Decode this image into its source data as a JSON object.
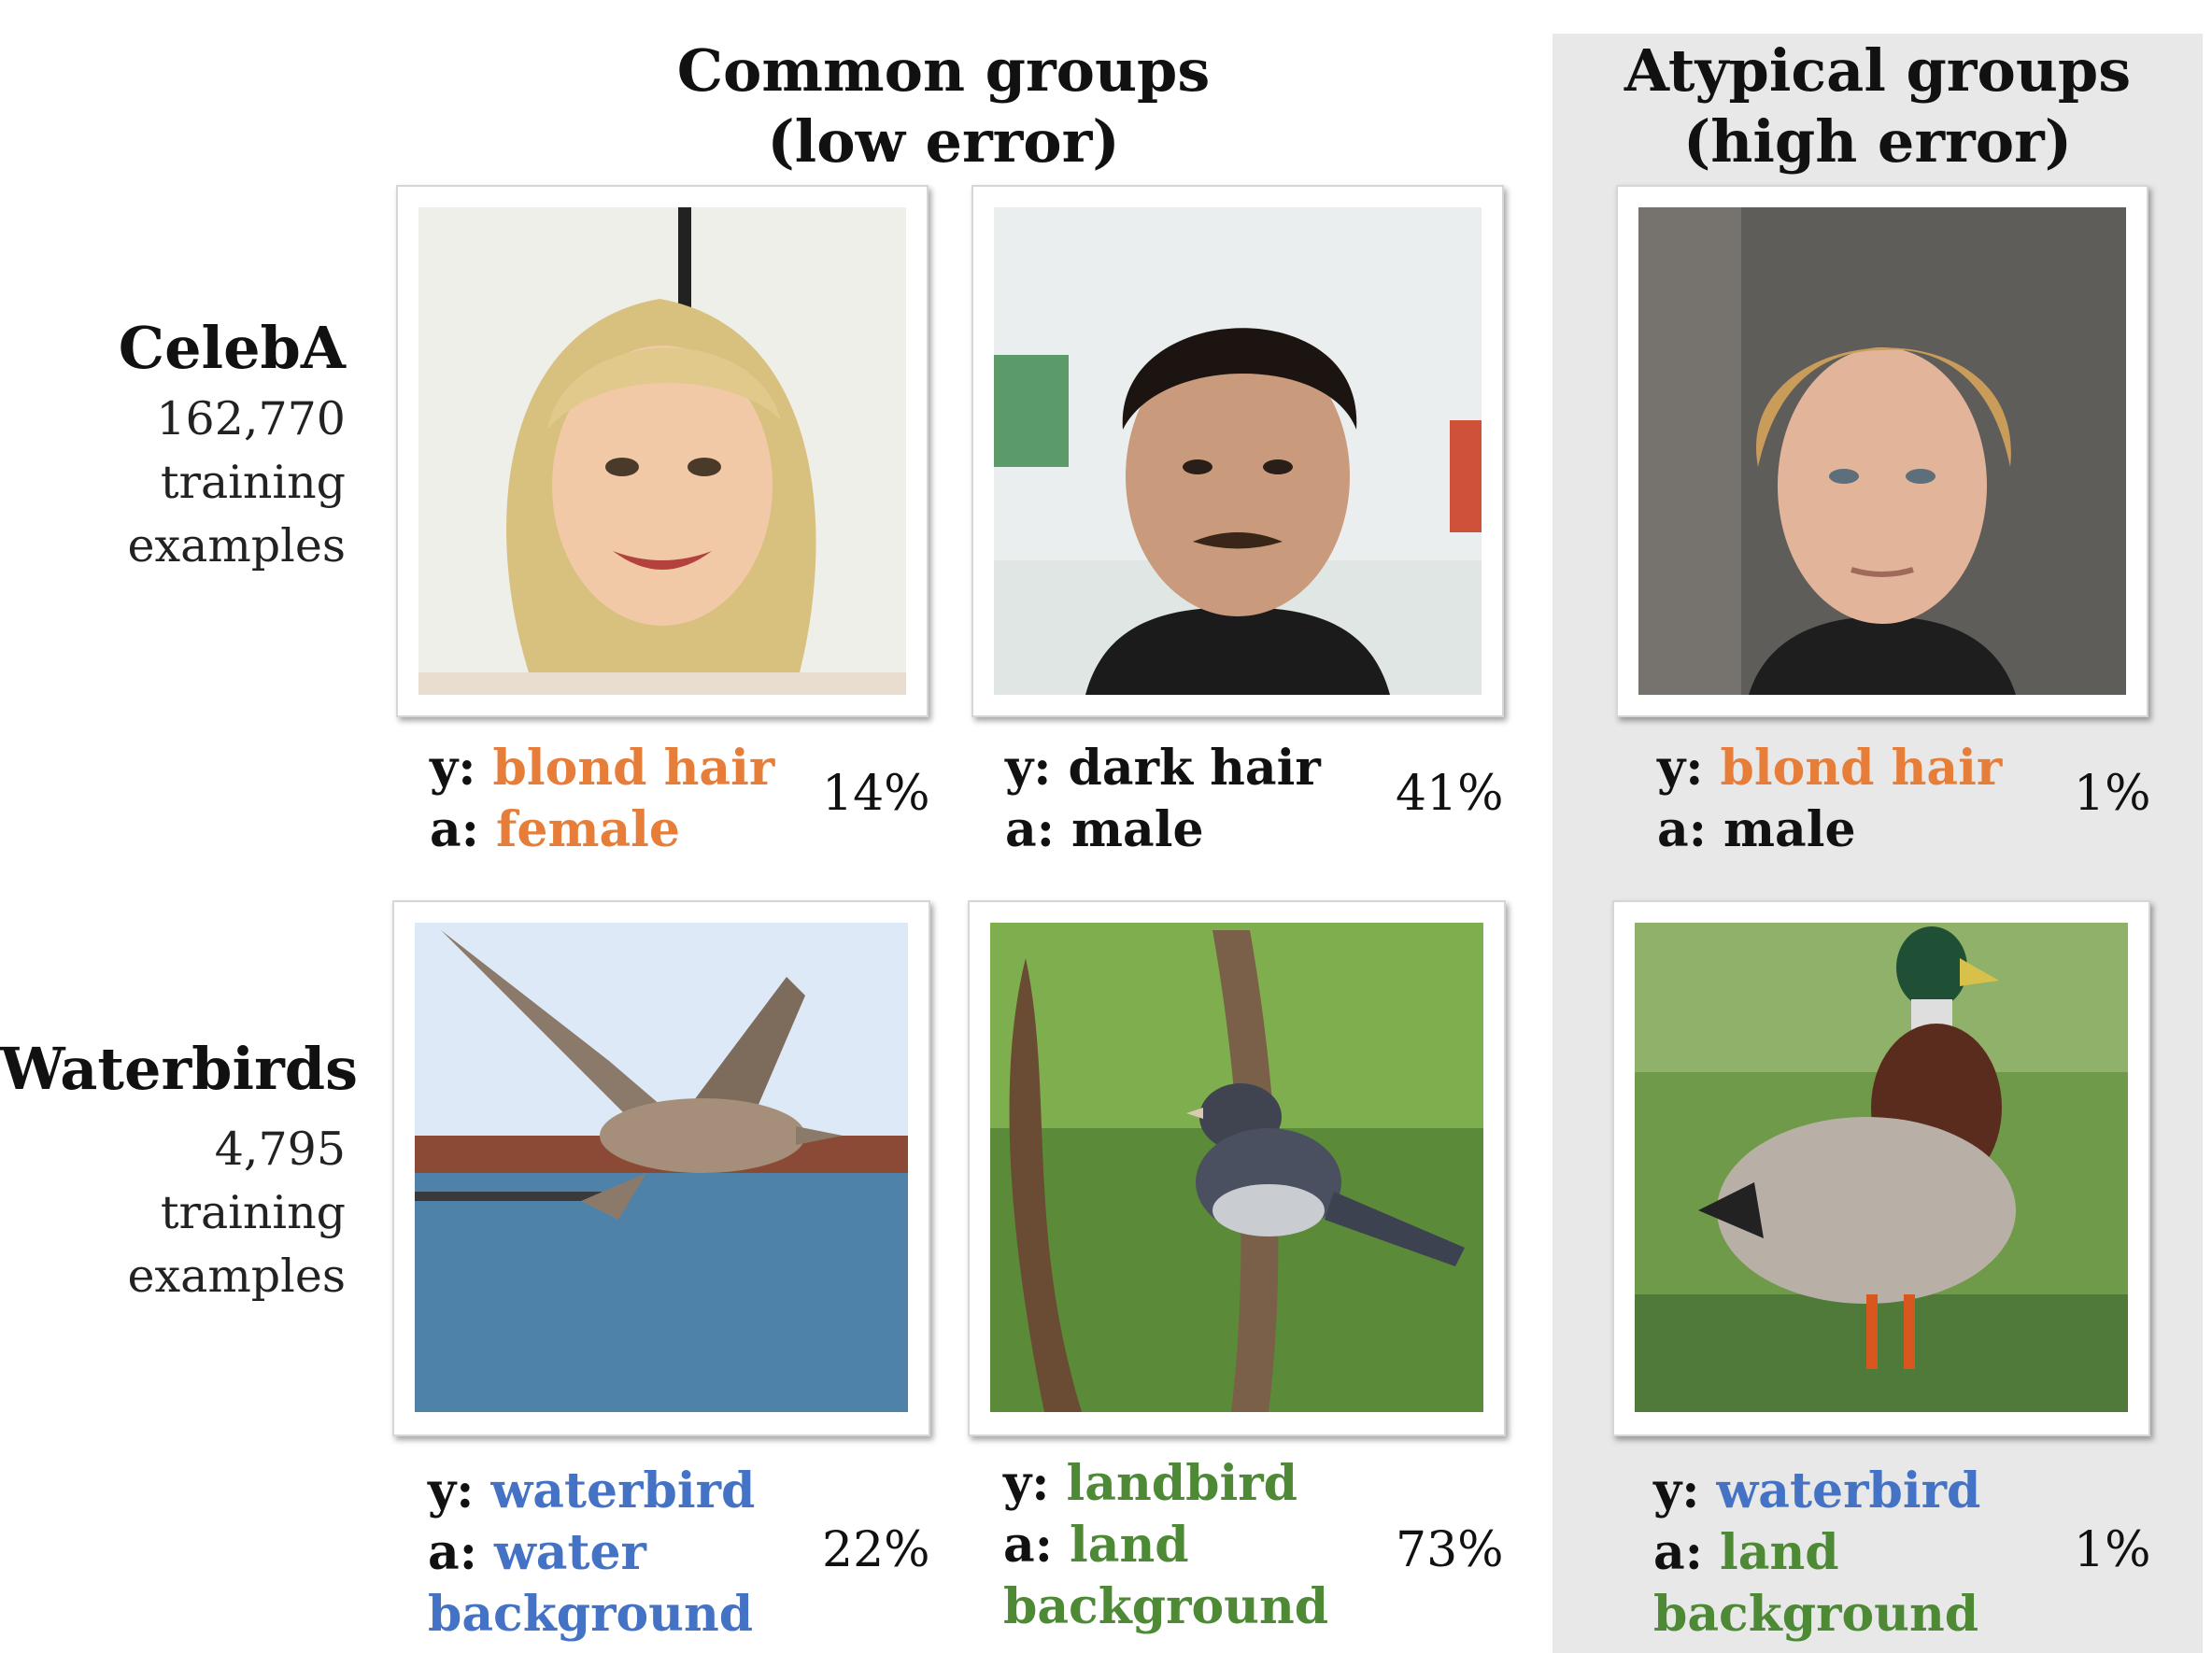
{
  "columns": {
    "common": {
      "line1": "Common groups",
      "line2": "(low error)"
    },
    "atypical": {
      "line1": "Atypical groups",
      "line2": "(high error)"
    }
  },
  "rows": {
    "celeba": {
      "title": "CelebA",
      "sub1": "162,770",
      "sub2": "training",
      "sub3": "examples"
    },
    "waterbirds": {
      "title": "Waterbirds",
      "sub1": "4,795",
      "sub2": "training",
      "sub3": "examples"
    }
  },
  "cells": {
    "celeba_1": {
      "y_key": "y:",
      "y_val": "blond hair",
      "a_key": "a:",
      "a_val": "female",
      "pct": "14%"
    },
    "celeba_2": {
      "y_key": "y:",
      "y_val": "dark hair",
      "a_key": "a:",
      "a_val": "male",
      "pct": "41%"
    },
    "celeba_3": {
      "y_key": "y:",
      "y_val": "blond hair",
      "a_key": "a:",
      "a_val": "male",
      "pct": "1%"
    },
    "wb_1": {
      "y_key": "y:",
      "y_val": "waterbird",
      "a_key": "a:",
      "a_val": "water",
      "a_val2": "background",
      "pct": "22%"
    },
    "wb_2": {
      "y_key": "y:",
      "y_val": "landbird",
      "a_key": "a:",
      "a_val": "land",
      "a_val2": "background",
      "pct": "73%"
    },
    "wb_3": {
      "y_key": "y:",
      "y_val": "waterbird",
      "a_key": "a:",
      "a_val": "land",
      "a_val2": "background",
      "pct": "1%"
    }
  },
  "colors": {
    "orange": "#e67e3a",
    "blue": "#4472c4",
    "green": "#4e8a36",
    "shade": "#e8e8e8"
  },
  "images": [
    "blond-woman-photo",
    "dark-haired-man-photo",
    "blond-man-photo",
    "flying-seabird-over-water-photo",
    "junco-on-plant-photo",
    "mallard-duck-in-grass-photo"
  ]
}
